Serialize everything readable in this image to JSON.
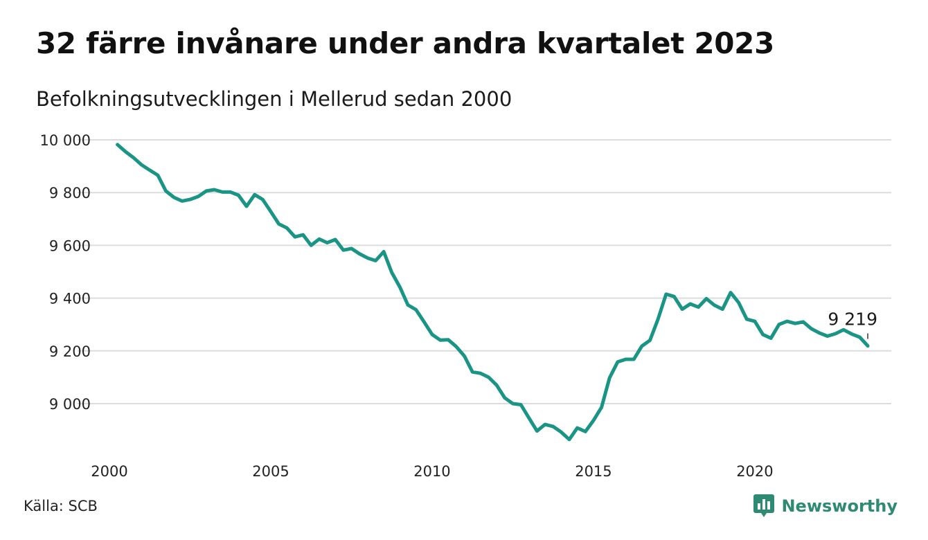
{
  "header": {
    "title": "32 färre invånare under andra kvartalet 2023",
    "subtitle": "Befolkningsutvecklingen i Mellerud sedan 2000"
  },
  "footer": {
    "source": "Källa: SCB",
    "brand": "Newsworthy",
    "brand_icon": "bar-chart-speech-bubble-icon",
    "brand_color": "#2e8a72"
  },
  "chart_data": {
    "type": "line",
    "title": "32 färre invånare under andra kvartalet 2023",
    "subtitle": "Befolkningsutvecklingen i Mellerud sedan 2000",
    "xlabel": "",
    "ylabel": "",
    "x_range": [
      2000.0,
      2023.5
    ],
    "ylim": [
      8850,
      10000
    ],
    "y_ticks": [
      9000,
      9200,
      9400,
      9600,
      9800,
      10000
    ],
    "y_tick_labels": [
      "9 000",
      "9 200",
      "9 400",
      "9 600",
      "9 800",
      "10 000"
    ],
    "x_ticks": [
      2000,
      2005,
      2010,
      2015,
      2020
    ],
    "x_tick_labels": [
      "2000",
      "2005",
      "2010",
      "2015",
      "2020"
    ],
    "grid": true,
    "line_color": "#1a9484",
    "end_label": "9 219",
    "series": [
      {
        "points": [
          [
            2000.25,
            9982
          ],
          [
            2000.5,
            9955
          ],
          [
            2000.75,
            9932
          ],
          [
            2001.0,
            9905
          ],
          [
            2001.25,
            9885
          ],
          [
            2001.5,
            9866
          ],
          [
            2001.75,
            9806
          ],
          [
            2002.0,
            9782
          ],
          [
            2002.25,
            9768
          ],
          [
            2002.5,
            9774
          ],
          [
            2002.75,
            9785
          ],
          [
            2003.0,
            9806
          ],
          [
            2003.25,
            9811
          ],
          [
            2003.5,
            9802
          ],
          [
            2003.75,
            9802
          ],
          [
            2004.0,
            9790
          ],
          [
            2004.25,
            9748
          ],
          [
            2004.5,
            9792
          ],
          [
            2004.75,
            9774
          ],
          [
            2005.0,
            9728
          ],
          [
            2005.25,
            9681
          ],
          [
            2005.5,
            9666
          ],
          [
            2005.75,
            9632
          ],
          [
            2006.0,
            9640
          ],
          [
            2006.25,
            9600
          ],
          [
            2006.5,
            9624
          ],
          [
            2006.75,
            9610
          ],
          [
            2007.0,
            9622
          ],
          [
            2007.25,
            9582
          ],
          [
            2007.5,
            9588
          ],
          [
            2007.75,
            9568
          ],
          [
            2008.0,
            9552
          ],
          [
            2008.25,
            9542
          ],
          [
            2008.5,
            9576
          ],
          [
            2008.75,
            9497
          ],
          [
            2009.0,
            9442
          ],
          [
            2009.25,
            9374
          ],
          [
            2009.5,
            9356
          ],
          [
            2009.75,
            9310
          ],
          [
            2010.0,
            9262
          ],
          [
            2010.25,
            9241
          ],
          [
            2010.5,
            9242
          ],
          [
            2010.75,
            9216
          ],
          [
            2011.0,
            9180
          ],
          [
            2011.25,
            9120
          ],
          [
            2011.5,
            9115
          ],
          [
            2011.75,
            9100
          ],
          [
            2012.0,
            9070
          ],
          [
            2012.25,
            9022
          ],
          [
            2012.5,
            9000
          ],
          [
            2012.75,
            8996
          ],
          [
            2013.0,
            8946
          ],
          [
            2013.25,
            8896
          ],
          [
            2013.5,
            8921
          ],
          [
            2013.75,
            8913
          ],
          [
            2014.0,
            8892
          ],
          [
            2014.25,
            8864
          ],
          [
            2014.5,
            8908
          ],
          [
            2014.75,
            8894
          ],
          [
            2015.0,
            8936
          ],
          [
            2015.25,
            8986
          ],
          [
            2015.5,
            9098
          ],
          [
            2015.75,
            9158
          ],
          [
            2016.0,
            9168
          ],
          [
            2016.25,
            9168
          ],
          [
            2016.5,
            9218
          ],
          [
            2016.75,
            9240
          ],
          [
            2017.0,
            9320
          ],
          [
            2017.25,
            9415
          ],
          [
            2017.5,
            9406
          ],
          [
            2017.75,
            9358
          ],
          [
            2018.0,
            9378
          ],
          [
            2018.25,
            9366
          ],
          [
            2018.5,
            9398
          ],
          [
            2018.75,
            9373
          ],
          [
            2019.0,
            9358
          ],
          [
            2019.25,
            9421
          ],
          [
            2019.5,
            9383
          ],
          [
            2019.75,
            9320
          ],
          [
            2020.0,
            9312
          ],
          [
            2020.25,
            9262
          ],
          [
            2020.5,
            9248
          ],
          [
            2020.75,
            9300
          ],
          [
            2021.0,
            9312
          ],
          [
            2021.25,
            9304
          ],
          [
            2021.5,
            9310
          ],
          [
            2021.75,
            9284
          ],
          [
            2022.0,
            9268
          ],
          [
            2022.25,
            9256
          ],
          [
            2022.5,
            9265
          ],
          [
            2022.75,
            9280
          ],
          [
            2023.0,
            9264
          ],
          [
            2023.25,
            9252
          ],
          [
            2023.5,
            9219
          ]
        ]
      }
    ]
  }
}
